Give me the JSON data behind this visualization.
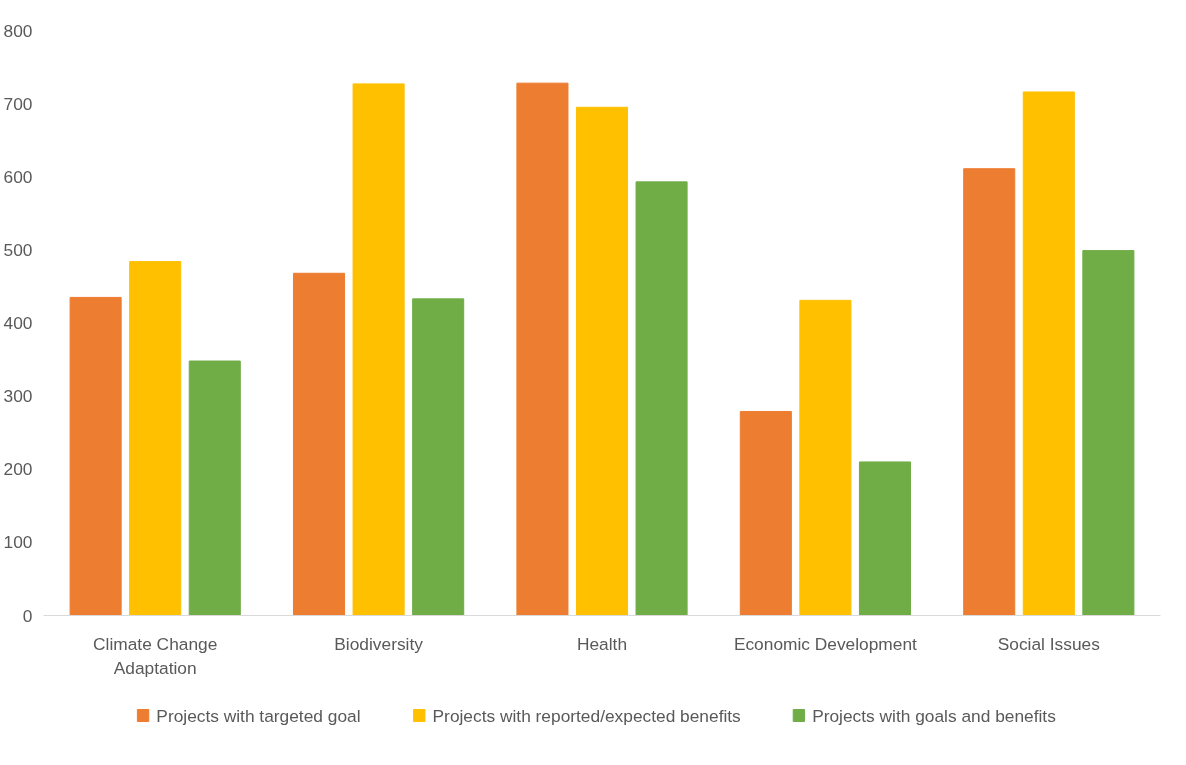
{
  "chart_data": {
    "type": "bar",
    "categories": [
      "Climate Change Adaptation",
      "Biodiversity",
      "Health",
      "Economic Development",
      "Social Issues"
    ],
    "series": [
      {
        "name": "Projects with targeted goal",
        "color": "#ed7d31",
        "values": [
          435,
          468,
          728,
          279,
          611
        ]
      },
      {
        "name": "Projects with reported/expected benefits",
        "color": "#ffc000",
        "values": [
          484,
          727,
          695,
          431,
          716
        ]
      },
      {
        "name": "Projects with goals and benefits",
        "color": "#70ad47",
        "values": [
          348,
          433,
          593,
          210,
          499
        ]
      }
    ],
    "ylim": [
      0,
      800
    ],
    "yticks": [
      0,
      100,
      200,
      300,
      400,
      500,
      600,
      700,
      800
    ],
    "grid": false,
    "legend": "bottom"
  }
}
